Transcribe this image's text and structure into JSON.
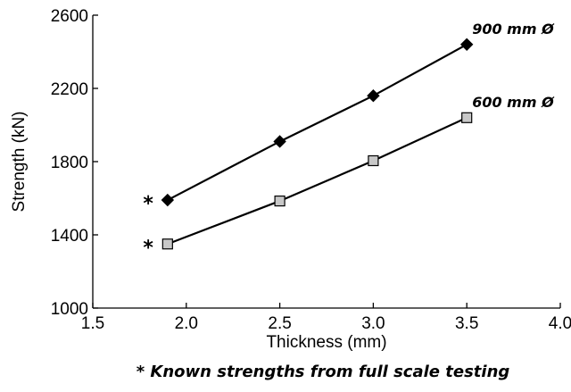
{
  "chart_data": {
    "type": "line",
    "xlabel": "Thickness (mm)",
    "ylabel": "Strength (kN)",
    "xlim": [
      1.5,
      4.0
    ],
    "ylim": [
      1000,
      2600
    ],
    "x_ticks": [
      1.5,
      2.0,
      2.5,
      3.0,
      3.5,
      4.0
    ],
    "x_tick_labels": [
      "1.5",
      "2.0",
      "2.5",
      "3.0",
      "3.5",
      "4.0"
    ],
    "y_ticks": [
      1000,
      1400,
      1800,
      2200,
      2600
    ],
    "y_tick_labels": [
      "1000",
      "1400",
      "1800",
      "2200",
      "2600"
    ],
    "grid": false,
    "series": [
      {
        "name": "900 mm Ø",
        "marker": "diamond",
        "marker_color": "#000000",
        "x": [
          1.9,
          2.5,
          3.0,
          3.5
        ],
        "values": [
          1590,
          1910,
          2160,
          2440
        ]
      },
      {
        "name": "600 mm Ø",
        "marker": "square",
        "marker_color": "#c8c8c8",
        "x": [
          1.9,
          2.5,
          3.0,
          3.5
        ],
        "values": [
          1350,
          1585,
          1805,
          2040
        ]
      }
    ],
    "annotations": [
      {
        "text": "*",
        "x": 1.9,
        "y": 1590
      },
      {
        "text": "*",
        "x": 1.9,
        "y": 1350
      }
    ],
    "footnote": "* Known strengths from full scale testing"
  }
}
